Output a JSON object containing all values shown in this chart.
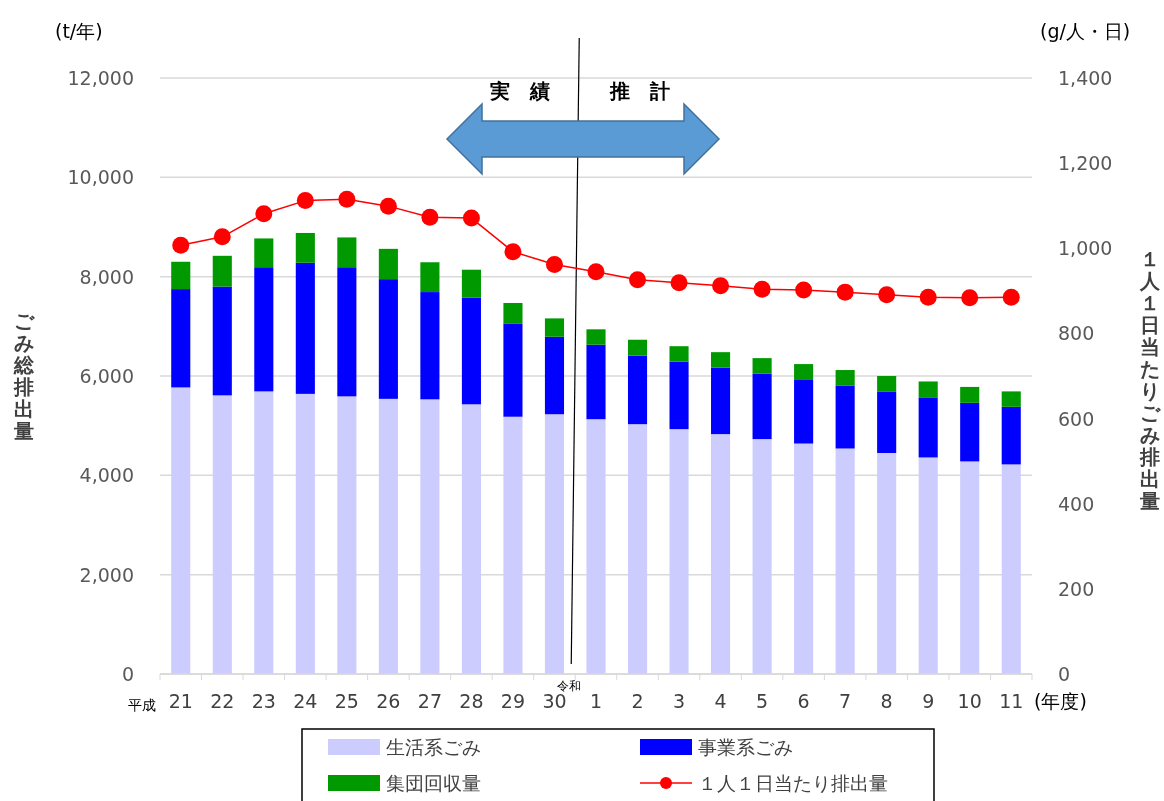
{
  "chart_data": {
    "type": "bar",
    "stacked": true,
    "categories": [
      "21",
      "22",
      "23",
      "24",
      "25",
      "26",
      "27",
      "28",
      "29",
      "30",
      "1",
      "2",
      "3",
      "4",
      "5",
      "6",
      "7",
      "8",
      "9",
      "10",
      "11"
    ],
    "xlabel": "(年度)",
    "ylabel": "ごみ総排出量",
    "y2label": "１人１日当たりごみ排出量",
    "annotations": [
      "(t/年)",
      "(g/人・日)",
      "平成",
      "実　績",
      "推　計",
      "令和"
    ],
    "series": [
      {
        "name": "生活系ごみ",
        "color": "#ccccff",
        "values": [
          5770,
          5610,
          5690,
          5640,
          5590,
          5540,
          5530,
          5430,
          5180,
          5230,
          5130,
          5030,
          4930,
          4830,
          4730,
          4640,
          4540,
          4450,
          4360,
          4280,
          4220
        ]
      },
      {
        "name": "事業系ごみ",
        "color": "#0000ff",
        "values": [
          1980,
          2190,
          2500,
          2640,
          2600,
          2410,
          2160,
          2150,
          1870,
          1560,
          1500,
          1380,
          1360,
          1340,
          1320,
          1280,
          1270,
          1240,
          1210,
          1180,
          1160
        ]
      },
      {
        "name": "集団回収量",
        "color": "#009900",
        "values": [
          550,
          620,
          580,
          600,
          600,
          610,
          600,
          560,
          420,
          370,
          310,
          320,
          310,
          310,
          310,
          320,
          310,
          310,
          320,
          320,
          310
        ]
      },
      {
        "name": "１人１日当たり排出量",
        "type": "line",
        "axis": "y2",
        "color": "#ff0000",
        "marker": "circle",
        "values": [
          1007,
          1027,
          1081,
          1112,
          1115,
          1099,
          1073,
          1071,
          992,
          962,
          945,
          926,
          919,
          912,
          904,
          902,
          897,
          891,
          885,
          884,
          885
        ]
      }
    ],
    "ylim": [
      0,
      12000
    ],
    "yticks": [
      {
        "value": 0,
        "label": "0"
      },
      {
        "value": 2000,
        "label": "2,000"
      },
      {
        "value": 4000,
        "label": "4,000"
      },
      {
        "value": 6000,
        "label": "6,000"
      },
      {
        "value": 8000,
        "label": "8,000"
      },
      {
        "value": 10000,
        "label": "10,000"
      },
      {
        "value": 12000,
        "label": "12,000"
      }
    ],
    "y2lim": [
      0,
      1400
    ],
    "y2ticks": [
      {
        "value": 0,
        "label": "0"
      },
      {
        "value": 200,
        "label": "200"
      },
      {
        "value": 400,
        "label": "400"
      },
      {
        "value": 600,
        "label": "600"
      },
      {
        "value": 800,
        "label": "800"
      },
      {
        "value": 1000,
        "label": "1,000"
      },
      {
        "value": 1200,
        "label": "1,200"
      },
      {
        "value": 1400,
        "label": "1,400"
      }
    ],
    "grid": "y",
    "legend": "bottom"
  }
}
